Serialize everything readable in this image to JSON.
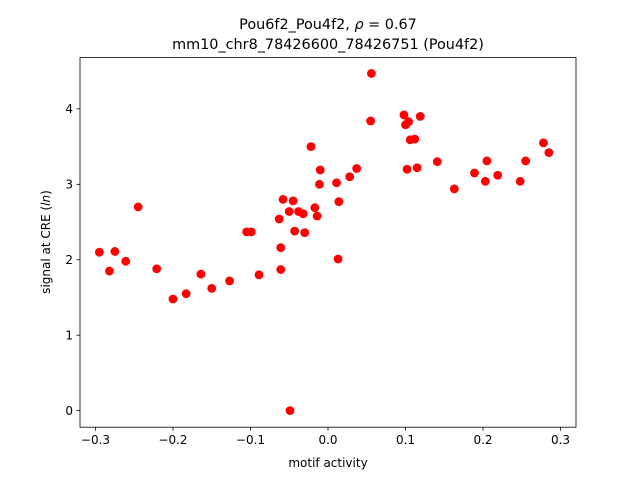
{
  "chart_data": {
    "type": "scatter",
    "title_line1_prefix": "Pou6f2_Pou4f2, ",
    "title_line1_rho": "ρ",
    "title_line1_suffix": " = 0.67",
    "title_line2": "mm10_chr8_78426600_78426751 (Pou4f2)",
    "xlabel": "motif activity",
    "ylabel_prefix": "signal at CRE (",
    "ylabel_italic": "ln",
    "ylabel_suffix": ")",
    "xlim": [
      -0.32,
      0.32
    ],
    "ylim": [
      -0.22,
      4.68
    ],
    "xticks": [
      -0.3,
      -0.2,
      -0.1,
      0.0,
      0.1,
      0.2,
      0.3
    ],
    "xtick_labels": [
      "−0.3",
      "−0.2",
      "−0.1",
      "0.0",
      "0.1",
      "0.2",
      "0.3"
    ],
    "yticks": [
      0,
      1,
      2,
      3,
      4
    ],
    "ytick_labels": [
      "0",
      "1",
      "2",
      "3",
      "4"
    ],
    "grid": false,
    "marker_color": "#ff0000",
    "points": [
      {
        "x": -0.295,
        "y": 2.1
      },
      {
        "x": -0.282,
        "y": 1.85
      },
      {
        "x": -0.275,
        "y": 2.11
      },
      {
        "x": -0.261,
        "y": 1.98
      },
      {
        "x": -0.245,
        "y": 2.7
      },
      {
        "x": -0.221,
        "y": 1.88
      },
      {
        "x": -0.2,
        "y": 1.48
      },
      {
        "x": -0.183,
        "y": 1.55
      },
      {
        "x": -0.164,
        "y": 1.81
      },
      {
        "x": -0.15,
        "y": 1.62
      },
      {
        "x": -0.127,
        "y": 1.72
      },
      {
        "x": -0.105,
        "y": 2.37
      },
      {
        "x": -0.099,
        "y": 2.37
      },
      {
        "x": -0.089,
        "y": 1.8
      },
      {
        "x": -0.063,
        "y": 2.54
      },
      {
        "x": -0.061,
        "y": 2.16
      },
      {
        "x": -0.061,
        "y": 1.87
      },
      {
        "x": -0.058,
        "y": 2.8
      },
      {
        "x": -0.05,
        "y": 2.64
      },
      {
        "x": -0.049,
        "y": 0.0
      },
      {
        "x": -0.045,
        "y": 2.78
      },
      {
        "x": -0.043,
        "y": 2.38
      },
      {
        "x": -0.038,
        "y": 2.64
      },
      {
        "x": -0.032,
        "y": 2.61
      },
      {
        "x": -0.03,
        "y": 2.36
      },
      {
        "x": -0.022,
        "y": 3.5
      },
      {
        "x": -0.017,
        "y": 2.69
      },
      {
        "x": -0.014,
        "y": 2.58
      },
      {
        "x": -0.011,
        "y": 3.0
      },
      {
        "x": -0.01,
        "y": 3.19
      },
      {
        "x": 0.011,
        "y": 3.02
      },
      {
        "x": 0.013,
        "y": 2.01
      },
      {
        "x": 0.014,
        "y": 2.77
      },
      {
        "x": 0.028,
        "y": 3.1
      },
      {
        "x": 0.037,
        "y": 3.21
      },
      {
        "x": 0.055,
        "y": 3.84
      },
      {
        "x": 0.056,
        "y": 4.47
      },
      {
        "x": 0.098,
        "y": 3.92
      },
      {
        "x": 0.1,
        "y": 3.79
      },
      {
        "x": 0.102,
        "y": 3.2
      },
      {
        "x": 0.104,
        "y": 3.83
      },
      {
        "x": 0.106,
        "y": 3.59
      },
      {
        "x": 0.112,
        "y": 3.6
      },
      {
        "x": 0.115,
        "y": 3.22
      },
      {
        "x": 0.119,
        "y": 3.9
      },
      {
        "x": 0.141,
        "y": 3.3
      },
      {
        "x": 0.163,
        "y": 2.94
      },
      {
        "x": 0.189,
        "y": 3.15
      },
      {
        "x": 0.203,
        "y": 3.04
      },
      {
        "x": 0.205,
        "y": 3.31
      },
      {
        "x": 0.219,
        "y": 3.12
      },
      {
        "x": 0.248,
        "y": 3.04
      },
      {
        "x": 0.255,
        "y": 3.31
      },
      {
        "x": 0.278,
        "y": 3.55
      },
      {
        "x": 0.285,
        "y": 3.42
      }
    ]
  }
}
